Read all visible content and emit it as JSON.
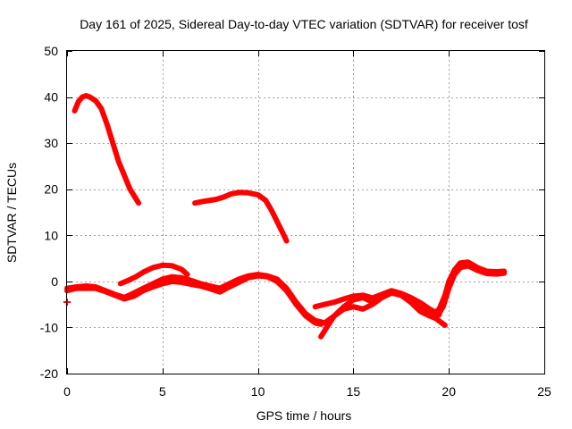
{
  "chart_data": {
    "type": "line",
    "title": "Day 161 of 2025, Sidereal Day-to-day VTEC variation (SDTVAR) for receiver tosf",
    "xlabel": "GPS time / hours",
    "ylabel": "SDTVAR / TECUs",
    "xlim": [
      0,
      25
    ],
    "ylim": [
      -20,
      50
    ],
    "xticks": [
      0,
      5,
      10,
      15,
      20,
      25
    ],
    "yticks": [
      -20,
      -10,
      0,
      10,
      20,
      30,
      40,
      50
    ],
    "grid": true,
    "legend": "none",
    "colors": {
      "series": "#ff0000",
      "axis": "#000000",
      "grid": "#a0a0a0"
    },
    "series": [
      {
        "name": "arc-high-1",
        "x": [
          0.4,
          0.6,
          0.8,
          1.0,
          1.2,
          1.5,
          1.8,
          2.1,
          2.4,
          2.7,
          3.0,
          3.3,
          3.6,
          3.75
        ],
        "y": [
          37,
          39,
          40,
          40.3,
          40,
          39.2,
          37.5,
          34,
          30,
          26,
          23,
          20,
          18,
          17
        ]
      },
      {
        "name": "arc-high-2",
        "x": [
          6.7,
          7.2,
          7.8,
          8.2,
          8.6,
          9.0,
          9.5,
          10.0,
          10.4,
          10.7,
          11.0,
          11.3,
          11.5
        ],
        "y": [
          17,
          17.4,
          17.8,
          18.3,
          19,
          19.3,
          19.2,
          18.8,
          17.6,
          15.5,
          13,
          10.5,
          8.8
        ]
      },
      {
        "name": "track-a",
        "x": [
          0.0,
          0.5,
          1.0,
          1.5,
          2.0,
          2.5,
          3.0,
          3.5,
          4.0,
          4.5,
          5.0,
          5.5,
          6.0,
          6.5,
          7.0,
          7.5,
          8.0,
          8.5,
          9.0,
          9.5,
          10.0,
          10.5,
          11.0,
          11.5,
          12.0,
          12.5,
          13.0,
          13.5,
          14.0,
          14.5,
          15.0,
          15.5,
          16.0,
          16.5,
          17.0,
          17.5,
          18.0,
          18.5,
          19.0,
          19.3
        ],
        "y": [
          -1.5,
          -1.2,
          -1.0,
          -1.2,
          -2.0,
          -2.8,
          -3.5,
          -2.5,
          -1.5,
          -0.5,
          0.5,
          1.0,
          0.8,
          0.2,
          -0.5,
          -1.0,
          -1.5,
          -0.5,
          0.5,
          1.2,
          1.5,
          1.2,
          0.5,
          -1.5,
          -4.5,
          -7.0,
          -8.5,
          -9.0,
          -7.5,
          -6.0,
          -5.5,
          -6.0,
          -5.0,
          -3.5,
          -2.5,
          -3.0,
          -4.5,
          -6.5,
          -7.5,
          -8.0
        ]
      },
      {
        "name": "track-b",
        "x": [
          0.0,
          0.5,
          1.0,
          1.5,
          2.0,
          2.5,
          3.0,
          3.5,
          4.0,
          4.5,
          5.0,
          5.5,
          6.0,
          6.5,
          7.0,
          7.5,
          8.0,
          8.5,
          9.0,
          9.5,
          10.0,
          10.5,
          11.0,
          11.5,
          12.0,
          12.5,
          13.0,
          13.3
        ],
        "y": [
          -2.0,
          -1.5,
          -1.5,
          -1.5,
          -2.2,
          -3.0,
          -3.8,
          -3.2,
          -2.0,
          -1.2,
          -0.5,
          0.0,
          -0.2,
          -0.6,
          -1.0,
          -1.6,
          -2.3,
          -1.2,
          -0.2,
          0.8,
          1.2,
          1.0,
          0.0,
          -2.0,
          -5.0,
          -7.5,
          -9.0,
          -9.3
        ]
      },
      {
        "name": "track-c",
        "x": [
          2.8,
          3.2,
          3.6,
          4.0,
          4.5,
          5.0,
          5.5,
          6.0,
          6.3
        ],
        "y": [
          -0.5,
          0.2,
          1.0,
          2.0,
          3.0,
          3.5,
          3.4,
          2.6,
          1.5
        ]
      },
      {
        "name": "track-d",
        "x": [
          13.3,
          13.6,
          14.0,
          14.5,
          15.0,
          15.5,
          16.0,
          16.5,
          17.0,
          17.5,
          18.0,
          18.5,
          19.0,
          19.5,
          19.8
        ],
        "y": [
          -12,
          -10,
          -7.5,
          -5.5,
          -4.0,
          -3.5,
          -4.5,
          -3.5,
          -2.2,
          -2.8,
          -3.6,
          -5.2,
          -7.0,
          -8.6,
          -9.5
        ]
      },
      {
        "name": "track-e",
        "x": [
          13.0,
          13.5,
          14.0,
          14.5,
          15.0,
          15.5,
          16.0,
          16.5,
          17.0,
          17.5,
          18.0,
          18.5,
          19.0,
          19.5
        ],
        "y": [
          -5.5,
          -5.0,
          -4.5,
          -3.8,
          -3.2,
          -3.0,
          -3.6,
          -2.8,
          -2.0,
          -2.6,
          -3.5,
          -4.6,
          -6.0,
          -7.2
        ]
      },
      {
        "name": "track-f",
        "x": [
          19.2,
          19.5,
          19.8,
          20.0,
          20.3,
          20.6,
          21.0,
          21.5,
          22.0,
          22.5,
          22.9
        ],
        "y": [
          -7.0,
          -6.0,
          -3.0,
          0.0,
          2.5,
          4.0,
          4.2,
          3.0,
          2.2,
          2.1,
          2.2
        ]
      },
      {
        "name": "track-g",
        "x": [
          19.4,
          19.7,
          20.0,
          20.3,
          20.6,
          21.0,
          21.5,
          22.0,
          22.5,
          22.9
        ],
        "y": [
          -7.5,
          -5.5,
          -1.5,
          1.5,
          3.0,
          3.4,
          2.4,
          1.7,
          1.6,
          1.8
        ]
      },
      {
        "name": "isolated-point",
        "x": [
          0.0
        ],
        "y": [
          -4.5
        ]
      }
    ]
  }
}
